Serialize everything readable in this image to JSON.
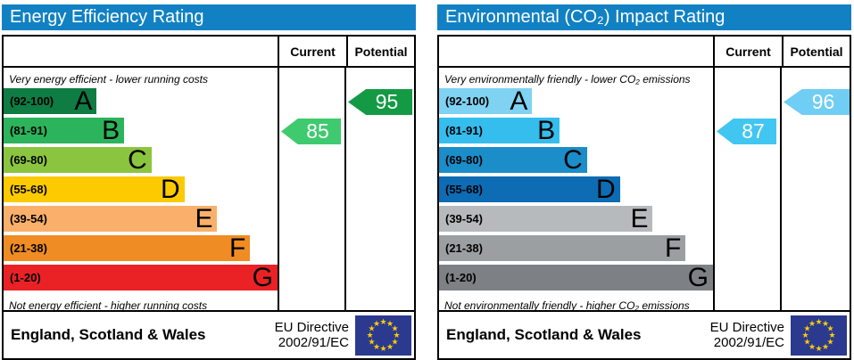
{
  "chart_data": [
    {
      "type": "bar",
      "title": "Energy Efficiency Rating",
      "categories": [
        "A (92-100)",
        "B (81-91)",
        "C (69-80)",
        "D (55-68)",
        "E (39-54)",
        "F (21-38)",
        "G (1-20)"
      ],
      "band_widths_pct": [
        34,
        44,
        54,
        66,
        78,
        90,
        100
      ],
      "series": [
        {
          "name": "Current",
          "value": 85,
          "band": "B"
        },
        {
          "name": "Potential",
          "value": 95,
          "band": "A"
        }
      ],
      "top_note": "Very energy efficient - lower running costs",
      "bottom_note": "Not energy efficient - higher running costs",
      "legend_position": "columns-right",
      "footer": "England, Scotland & Wales — EU Directive 2002/91/EC"
    },
    {
      "type": "bar",
      "title": "Environmental (CO₂) Impact Rating",
      "categories": [
        "A (92-100)",
        "B (81-91)",
        "C (69-80)",
        "D (55-68)",
        "E (39-54)",
        "F (21-38)",
        "G (1-20)"
      ],
      "band_widths_pct": [
        34,
        44,
        54,
        66,
        78,
        90,
        100
      ],
      "series": [
        {
          "name": "Current",
          "value": 87,
          "band": "B"
        },
        {
          "name": "Potential",
          "value": 96,
          "band": "A"
        }
      ],
      "top_note": "Very environmentally friendly - lower CO₂ emissions",
      "bottom_note": "Not environmentally friendly - higher CO₂ emissions",
      "legend_position": "columns-right",
      "footer": "England, Scotland & Wales — EU Directive 2002/91/EC"
    }
  ],
  "panels": [
    {
      "title": "Energy Efficiency Rating",
      "header_bg": "#1181c4",
      "columns": {
        "current": "Current",
        "potential": "Potential"
      },
      "top_caption": "Very energy efficient - lower running costs",
      "bottom_caption": "Not energy efficient - higher running costs",
      "bands": [
        {
          "range": "(92-100)",
          "letter": "A",
          "color": "#0e7c43",
          "width": "34%"
        },
        {
          "range": "(81-91)",
          "letter": "B",
          "color": "#2cb45c",
          "width": "44%"
        },
        {
          "range": "(69-80)",
          "letter": "C",
          "color": "#8bc53f",
          "width": "54%"
        },
        {
          "range": "(55-68)",
          "letter": "D",
          "color": "#fdca00",
          "width": "66%"
        },
        {
          "range": "(39-54)",
          "letter": "E",
          "color": "#fab06a",
          "width": "78%"
        },
        {
          "range": "(21-38)",
          "letter": "F",
          "color": "#ef8c23",
          "width": "90%"
        },
        {
          "range": "(1-20)",
          "letter": "G",
          "color": "#ea2226",
          "width": "100%"
        }
      ],
      "current": {
        "value": "85",
        "color": "#3fca6f"
      },
      "potential": {
        "value": "95",
        "color": "#149a44"
      },
      "footer": {
        "region": "England, Scotland & Wales",
        "directive_line1": "EU Directive",
        "directive_line2": "2002/91/EC"
      },
      "flag_bg": "#2b3a8f",
      "star_color": "#ffcc00"
    },
    {
      "title": "Environmental (CO₂) Impact Rating",
      "header_bg": "#1181c4",
      "columns": {
        "current": "Current",
        "potential": "Potential"
      },
      "top_caption": "Very environmentally friendly - lower CO₂ emissions",
      "bottom_caption": "Not environmentally friendly - higher CO₂ emissions",
      "bands": [
        {
          "range": "(92-100)",
          "letter": "A",
          "color": "#7fd2f1",
          "width": "34%"
        },
        {
          "range": "(81-91)",
          "letter": "B",
          "color": "#35bdee",
          "width": "44%"
        },
        {
          "range": "(69-80)",
          "letter": "C",
          "color": "#1b8dc9",
          "width": "54%"
        },
        {
          "range": "(55-68)",
          "letter": "D",
          "color": "#0d6cb3",
          "width": "66%"
        },
        {
          "range": "(39-54)",
          "letter": "E",
          "color": "#b7babc",
          "width": "78%"
        },
        {
          "range": "(21-38)",
          "letter": "F",
          "color": "#9c9fa2",
          "width": "90%"
        },
        {
          "range": "(1-20)",
          "letter": "G",
          "color": "#7d8084",
          "width": "100%"
        }
      ],
      "current": {
        "value": "87",
        "color": "#41c6f1"
      },
      "potential": {
        "value": "96",
        "color": "#70cdf3"
      },
      "footer": {
        "region": "England, Scotland & Wales",
        "directive_line1": "EU Directive",
        "directive_line2": "2002/91/EC"
      },
      "flag_bg": "#2b3a8f",
      "star_color": "#ffcc00"
    }
  ]
}
